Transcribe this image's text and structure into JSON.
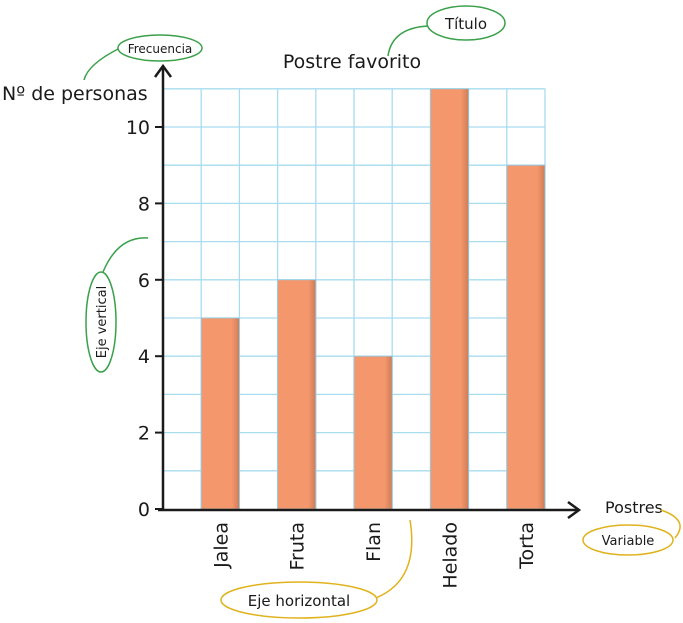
{
  "chart_data": {
    "type": "bar",
    "title": "Postre favorito",
    "xlabel": "Postres",
    "ylabel": "Nº de personas",
    "categories": [
      "Jalea",
      "Fruta",
      "Flan",
      "Helado",
      "Torta"
    ],
    "values": [
      5,
      6,
      4,
      11,
      9
    ],
    "ylim": [
      0,
      11
    ],
    "yticks": [
      0,
      2,
      4,
      6,
      8,
      10
    ],
    "grid": true,
    "bar_color": "#f4976c",
    "grid_color": "#a8dcef",
    "annotations": {
      "title_label": "Título",
      "frequency_label": "Frecuencia",
      "vertical_axis_label": "Eje vertical",
      "horizontal_axis_label": "Eje horizontal",
      "variable_label": "Variable"
    },
    "annotation_colors": {
      "green": "#3aa04a",
      "yellow": "#e0b21c"
    }
  }
}
